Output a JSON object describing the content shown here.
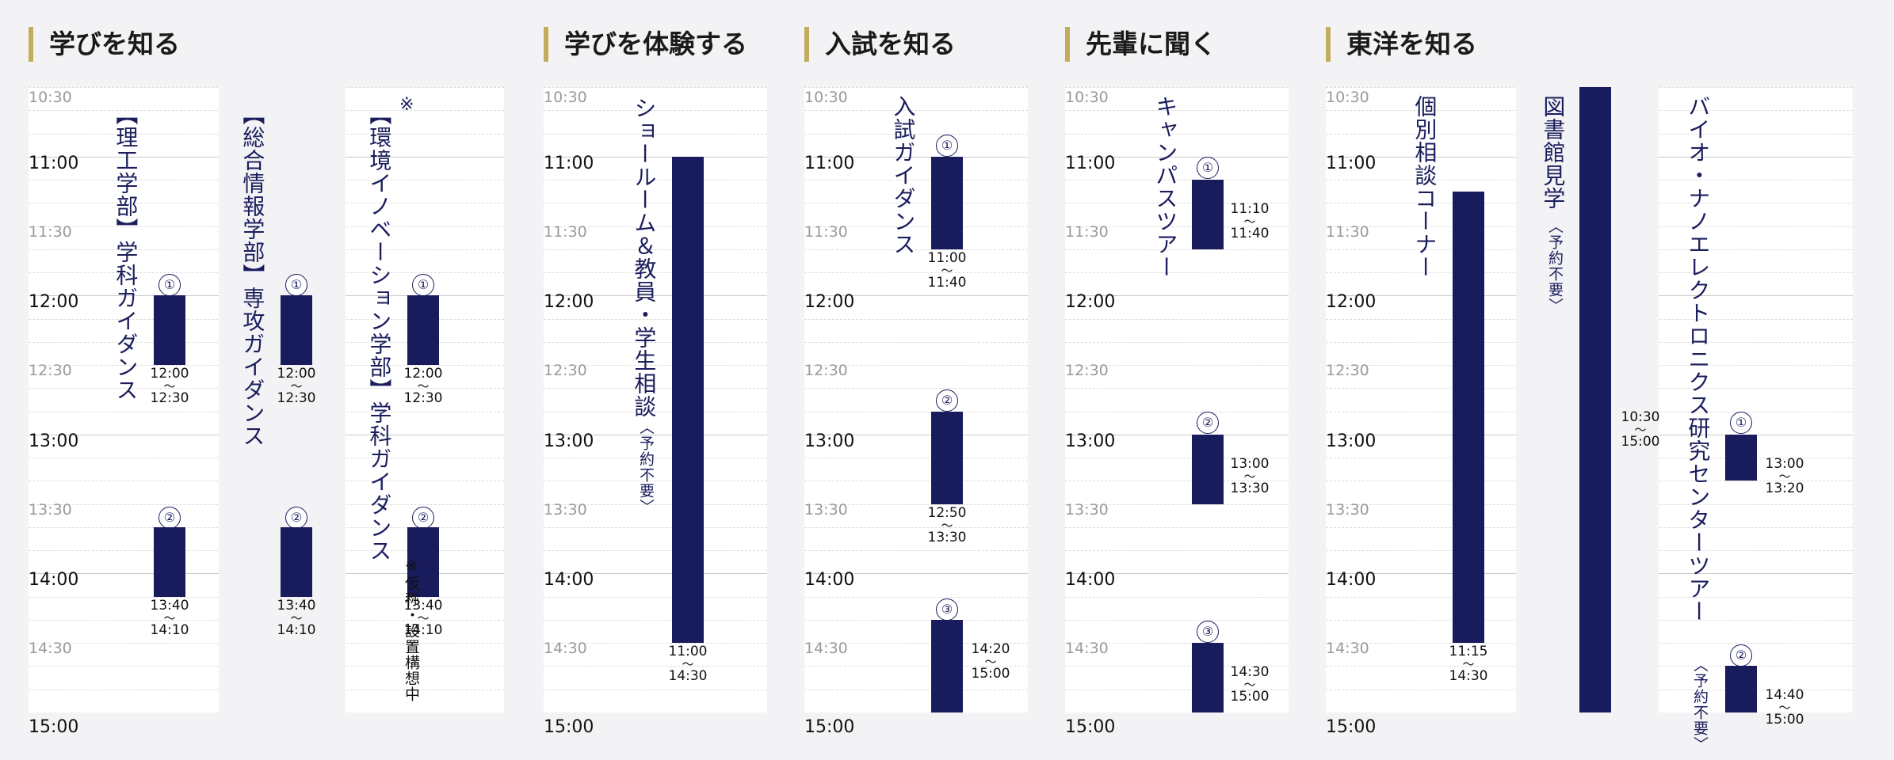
{
  "time_labels": {
    "t1030": "10:30",
    "t1100": "11:00",
    "t1130": "11:30",
    "t1200": "12:00",
    "t1230": "12:30",
    "t1300": "13:00",
    "t1330": "13:30",
    "t1400": "14:00",
    "t1430": "14:30",
    "t1500": "15:00"
  },
  "tilde": "〜",
  "mark_note": "※",
  "sections": {
    "manabi": {
      "title": "学びを知る",
      "events": [
        {
          "label": "【理工学部】学科ガイダンス",
          "sessions": [
            {
              "num": "①",
              "start": "12:00",
              "end": "12:30"
            },
            {
              "num": "②",
              "start": "13:40",
              "end": "14:10"
            }
          ]
        },
        {
          "label": "【総合情報学部】専攻ガイダンス",
          "sessions": [
            {
              "num": "①",
              "start": "12:00",
              "end": "12:30"
            },
            {
              "num": "②",
              "start": "13:40",
              "end": "14:10"
            }
          ]
        },
        {
          "label": "【環境イノベーション学部】学科ガイダンス",
          "note": "※仮称・設置構想中",
          "sessions": [
            {
              "num": "①",
              "start": "12:00",
              "end": "12:30"
            },
            {
              "num": "②",
              "start": "13:40",
              "end": "14:10"
            }
          ]
        }
      ]
    },
    "taiken": {
      "title": "学びを体験する",
      "events": [
        {
          "label": "ショールーム＆教員・学生相談",
          "sublabel": "〈予約不要〉",
          "sessions": [
            {
              "start": "11:00",
              "end": "14:30"
            }
          ]
        }
      ]
    },
    "nyushi": {
      "title": "入試を知る",
      "events": [
        {
          "label": "入試ガイダンス",
          "sessions": [
            {
              "num": "①",
              "start": "11:00",
              "end": "11:40"
            },
            {
              "num": "②",
              "start": "12:50",
              "end": "13:30"
            },
            {
              "num": "③",
              "start": "14:20",
              "end": "15:00"
            }
          ]
        }
      ]
    },
    "senpai": {
      "title": "先輩に聞く",
      "events": [
        {
          "label": "キャンパスツアー",
          "sessions": [
            {
              "num": "①",
              "start": "11:10",
              "end": "11:40"
            },
            {
              "num": "②",
              "start": "13:00",
              "end": "13:30"
            },
            {
              "num": "③",
              "start": "14:30",
              "end": "15:00"
            }
          ]
        }
      ]
    },
    "toyo": {
      "title": "東洋を知る",
      "events": [
        {
          "label": "個別相談コーナー",
          "sessions": [
            {
              "start": "11:15",
              "end": "14:30"
            }
          ]
        },
        {
          "label": "図書館見学",
          "sublabel": "〈予約不要〉",
          "sessions": [
            {
              "start": "10:30",
              "end": "15:00"
            }
          ]
        },
        {
          "label": "バイオ・ナノエレクトロニクス研究センターツアー",
          "sublabel": "〈予約不要〉",
          "sessions": [
            {
              "num": "①",
              "start": "13:00",
              "end": "13:20"
            },
            {
              "num": "②",
              "start": "14:40",
              "end": "15:00"
            }
          ]
        }
      ]
    }
  },
  "colors": {
    "accent": "#c3ad5d",
    "bar": "#181b5c",
    "label": "#1b1e5d"
  }
}
